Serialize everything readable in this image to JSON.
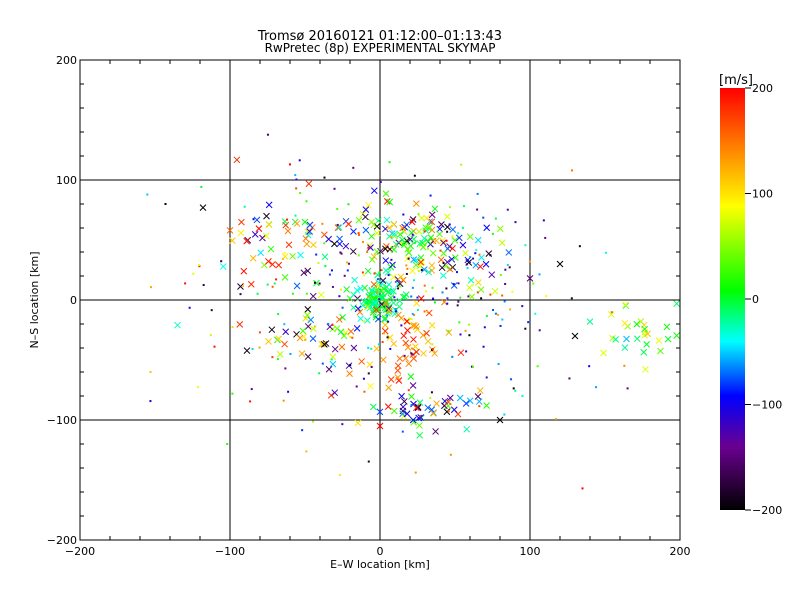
{
  "chart_data": {
    "type": "scatter",
    "title": "Tromsø 20160121 01:12:00–01:13:43",
    "subtitle": "RwPretec (8p) EXPERIMENTAL SKYMAP",
    "xlabel": "E–W location [km]",
    "ylabel": "N–S location [km]",
    "xlim": [
      -200,
      200
    ],
    "ylim": [
      -200,
      200
    ],
    "x_ticks": [
      -200,
      -100,
      0,
      100,
      200
    ],
    "y_ticks": [
      -200,
      -100,
      0,
      100,
      200
    ],
    "x_tick_labels": [
      "−200",
      "−100",
      "0",
      "100",
      "200"
    ],
    "y_tick_labels": [
      "−200",
      "−100",
      "0",
      "100",
      "200"
    ],
    "grid_lines": [
      -100,
      0,
      100
    ],
    "grid": true,
    "colorbar": {
      "label": "[m/s]",
      "range": [
        -200,
        200
      ],
      "ticks": [
        200,
        100,
        0,
        -100,
        -200
      ],
      "tick_labels": [
        "200",
        "100",
        "0",
        "−100",
        "−200"
      ],
      "stops": [
        "#000000",
        "#6a0090",
        "#0000ff",
        "#00ffff",
        "#00ff00",
        "#ffff00",
        "#ff8000",
        "#ff0000"
      ]
    },
    "clusters": [
      {
        "cx": 0,
        "cy": 0,
        "sx": 8,
        "sy": 8,
        "n": 90,
        "vmin": -40,
        "vmax": 30,
        "mark": "x"
      },
      {
        "cx": -5,
        "cy": 55,
        "sx": 25,
        "sy": 18,
        "n": 70,
        "vmin": -200,
        "vmax": 200,
        "mark": "x"
      },
      {
        "cx": 40,
        "cy": 35,
        "sx": 22,
        "sy": 15,
        "n": 80,
        "vmin": -200,
        "vmax": 200,
        "mark": "x"
      },
      {
        "cx": 22,
        "cy": 50,
        "sx": 12,
        "sy": 8,
        "n": 25,
        "vmin": -30,
        "vmax": 40,
        "mark": "x"
      },
      {
        "cx": -70,
        "cy": 50,
        "sx": 20,
        "sy": 20,
        "n": 45,
        "vmin": -200,
        "vmax": 200,
        "mark": "x"
      },
      {
        "cx": -40,
        "cy": -30,
        "sx": 20,
        "sy": 20,
        "n": 55,
        "vmin": -200,
        "vmax": 200,
        "mark": "x"
      },
      {
        "cx": 20,
        "cy": -40,
        "sx": 15,
        "sy": 20,
        "n": 50,
        "vmin": 100,
        "vmax": 200,
        "mark": "x"
      },
      {
        "cx": 30,
        "cy": -90,
        "sx": 20,
        "sy": 10,
        "n": 50,
        "vmin": -200,
        "vmax": 200,
        "mark": "x"
      },
      {
        "cx": 175,
        "cy": -30,
        "sx": 15,
        "sy": 12,
        "n": 28,
        "vmin": -60,
        "vmax": 120,
        "mark": "x"
      },
      {
        "cx": 0,
        "cy": 0,
        "sx": 60,
        "sy": 55,
        "n": 230,
        "vmin": -200,
        "vmax": 200,
        "mark": "dot"
      },
      {
        "cx": 50,
        "cy": 10,
        "sx": 50,
        "sy": 40,
        "n": 60,
        "vmin": -200,
        "vmax": 200,
        "mark": "dot"
      }
    ],
    "isolated_points": [
      {
        "x": -143,
        "y": 80,
        "v": -200,
        "mark": "dot"
      },
      {
        "x": -118,
        "y": 77,
        "v": -200,
        "mark": "x"
      },
      {
        "x": -100,
        "y": 58,
        "v": 150,
        "mark": "x"
      },
      {
        "x": -135,
        "y": -21,
        "v": -30,
        "mark": "x"
      },
      {
        "x": -60,
        "y": 113,
        "v": 200,
        "mark": "dot"
      },
      {
        "x": -37,
        "y": 102,
        "v": -200,
        "mark": "dot"
      },
      {
        "x": 128,
        "y": 108,
        "v": 150,
        "mark": "dot"
      },
      {
        "x": 135,
        "y": -157,
        "v": 200,
        "mark": "dot"
      },
      {
        "x": 100,
        "y": 18,
        "v": -150,
        "mark": "x"
      },
      {
        "x": 120,
        "y": 30,
        "v": -200,
        "mark": "x"
      },
      {
        "x": 130,
        "y": -30,
        "v": -200,
        "mark": "x"
      },
      {
        "x": 140,
        "y": -18,
        "v": -20,
        "mark": "x"
      },
      {
        "x": 80,
        "y": -100,
        "v": -200,
        "mark": "x"
      },
      {
        "x": 0,
        "y": -105,
        "v": 200,
        "mark": "x"
      },
      {
        "x": 95,
        "y": -80,
        "v": -30,
        "mark": "dot"
      }
    ]
  }
}
